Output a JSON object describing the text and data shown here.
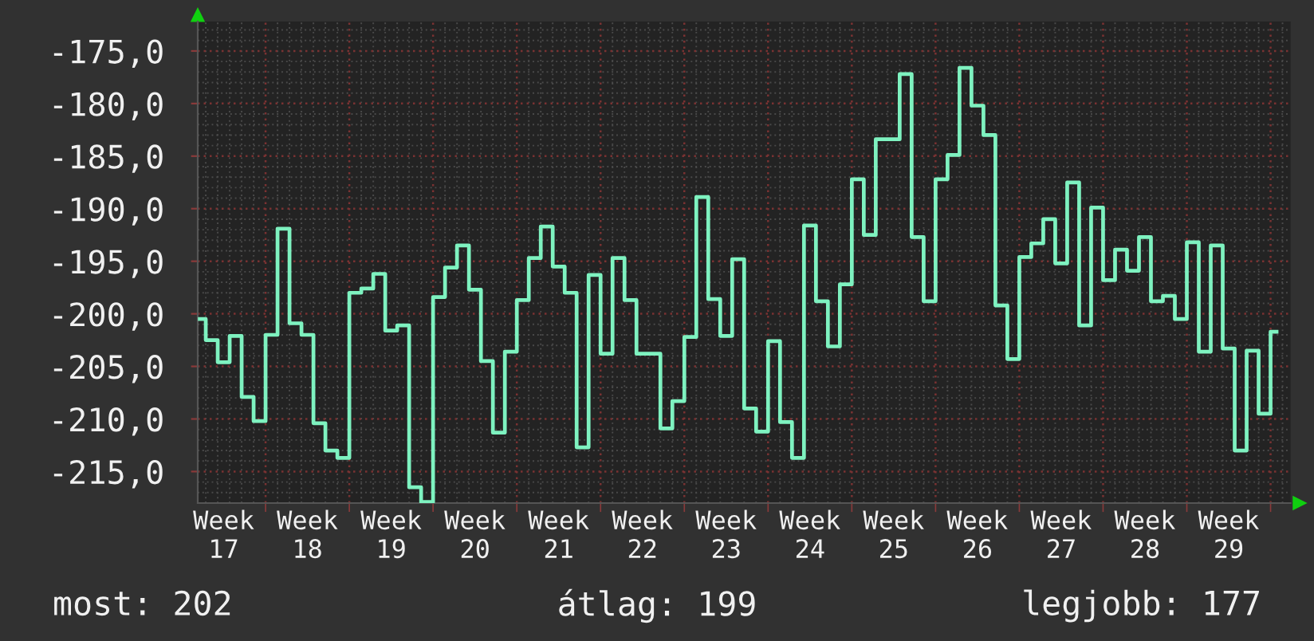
{
  "chart_data": {
    "type": "step",
    "color": "#7ef2c0",
    "categories": [
      null,
      null,
      "Week 17",
      null,
      null,
      null,
      null,
      null,
      null,
      "Week 18",
      null,
      null,
      null,
      null,
      null,
      null,
      "Week 19",
      null,
      null,
      null,
      null,
      null,
      null,
      "Week 20",
      null,
      null,
      null,
      null,
      null,
      null,
      "Week 21",
      null,
      null,
      null,
      null,
      null,
      null,
      "Week 22",
      null,
      null,
      null,
      null,
      null,
      null,
      "Week 23",
      null,
      null,
      null,
      null,
      null,
      null,
      "Week 24",
      null,
      null,
      null,
      null,
      null,
      null,
      "Week 25",
      null,
      null,
      null,
      null,
      null,
      null,
      "Week 26",
      null,
      null,
      null,
      null,
      null,
      null,
      "Week 27",
      null,
      null,
      null,
      null,
      null,
      null,
      "Week 28",
      null,
      null,
      null,
      null,
      null,
      null,
      "Week 29",
      null,
      null,
      null,
      null
    ],
    "values": [
      -200.5,
      -202.5,
      -204.6,
      -202.1,
      -207.9,
      -210.2,
      -202.0,
      -191.9,
      -200.9,
      -202.0,
      -210.4,
      -213.0,
      -213.7,
      -198.0,
      -197.6,
      -196.2,
      -201.6,
      -201.1,
      -216.5,
      -217.9,
      -198.4,
      -195.6,
      -193.5,
      -197.7,
      -204.5,
      -211.3,
      -203.6,
      -198.7,
      -194.7,
      -191.7,
      -195.5,
      -198.0,
      -212.7,
      -196.3,
      -203.8,
      -194.7,
      -198.7,
      -203.8,
      -203.8,
      -210.9,
      -208.3,
      -202.2,
      -188.9,
      -198.6,
      -202.1,
      -194.8,
      -209.0,
      -211.2,
      -202.6,
      -210.3,
      -213.7,
      -191.6,
      -198.8,
      -203.1,
      -197.2,
      -187.2,
      -192.5,
      -183.4,
      -183.4,
      -177.2,
      -192.7,
      -198.8,
      -187.2,
      -184.9,
      -176.6,
      -180.2,
      -183.0,
      -199.2,
      -204.3,
      -194.6,
      -193.3,
      -191.0,
      -195.2,
      -187.5,
      -201.1,
      -189.9,
      -196.8,
      -193.9,
      -195.9,
      -192.7,
      -198.8,
      -198.3,
      -200.5,
      -193.2,
      -203.6,
      -193.5,
      -203.3,
      -213.0,
      -203.5,
      -209.5,
      -201.7
    ],
    "ylim": [
      -218,
      -172.2
    ],
    "yticks": [
      {
        "value": -215,
        "label": "-215,0"
      },
      {
        "value": -210,
        "label": "-210,0"
      },
      {
        "value": -205,
        "label": "-205,0"
      },
      {
        "value": -200,
        "label": "-200,0"
      },
      {
        "value": -195,
        "label": "-195,0"
      },
      {
        "value": -190,
        "label": "-190,0"
      },
      {
        "value": -185,
        "label": "-185,0"
      },
      {
        "value": -180,
        "label": "-180,0"
      },
      {
        "value": -175,
        "label": "-175,0"
      }
    ],
    "grid": true,
    "annotations": [
      "most: 202",
      "átlag: 199",
      "legjobb: 177"
    ]
  }
}
